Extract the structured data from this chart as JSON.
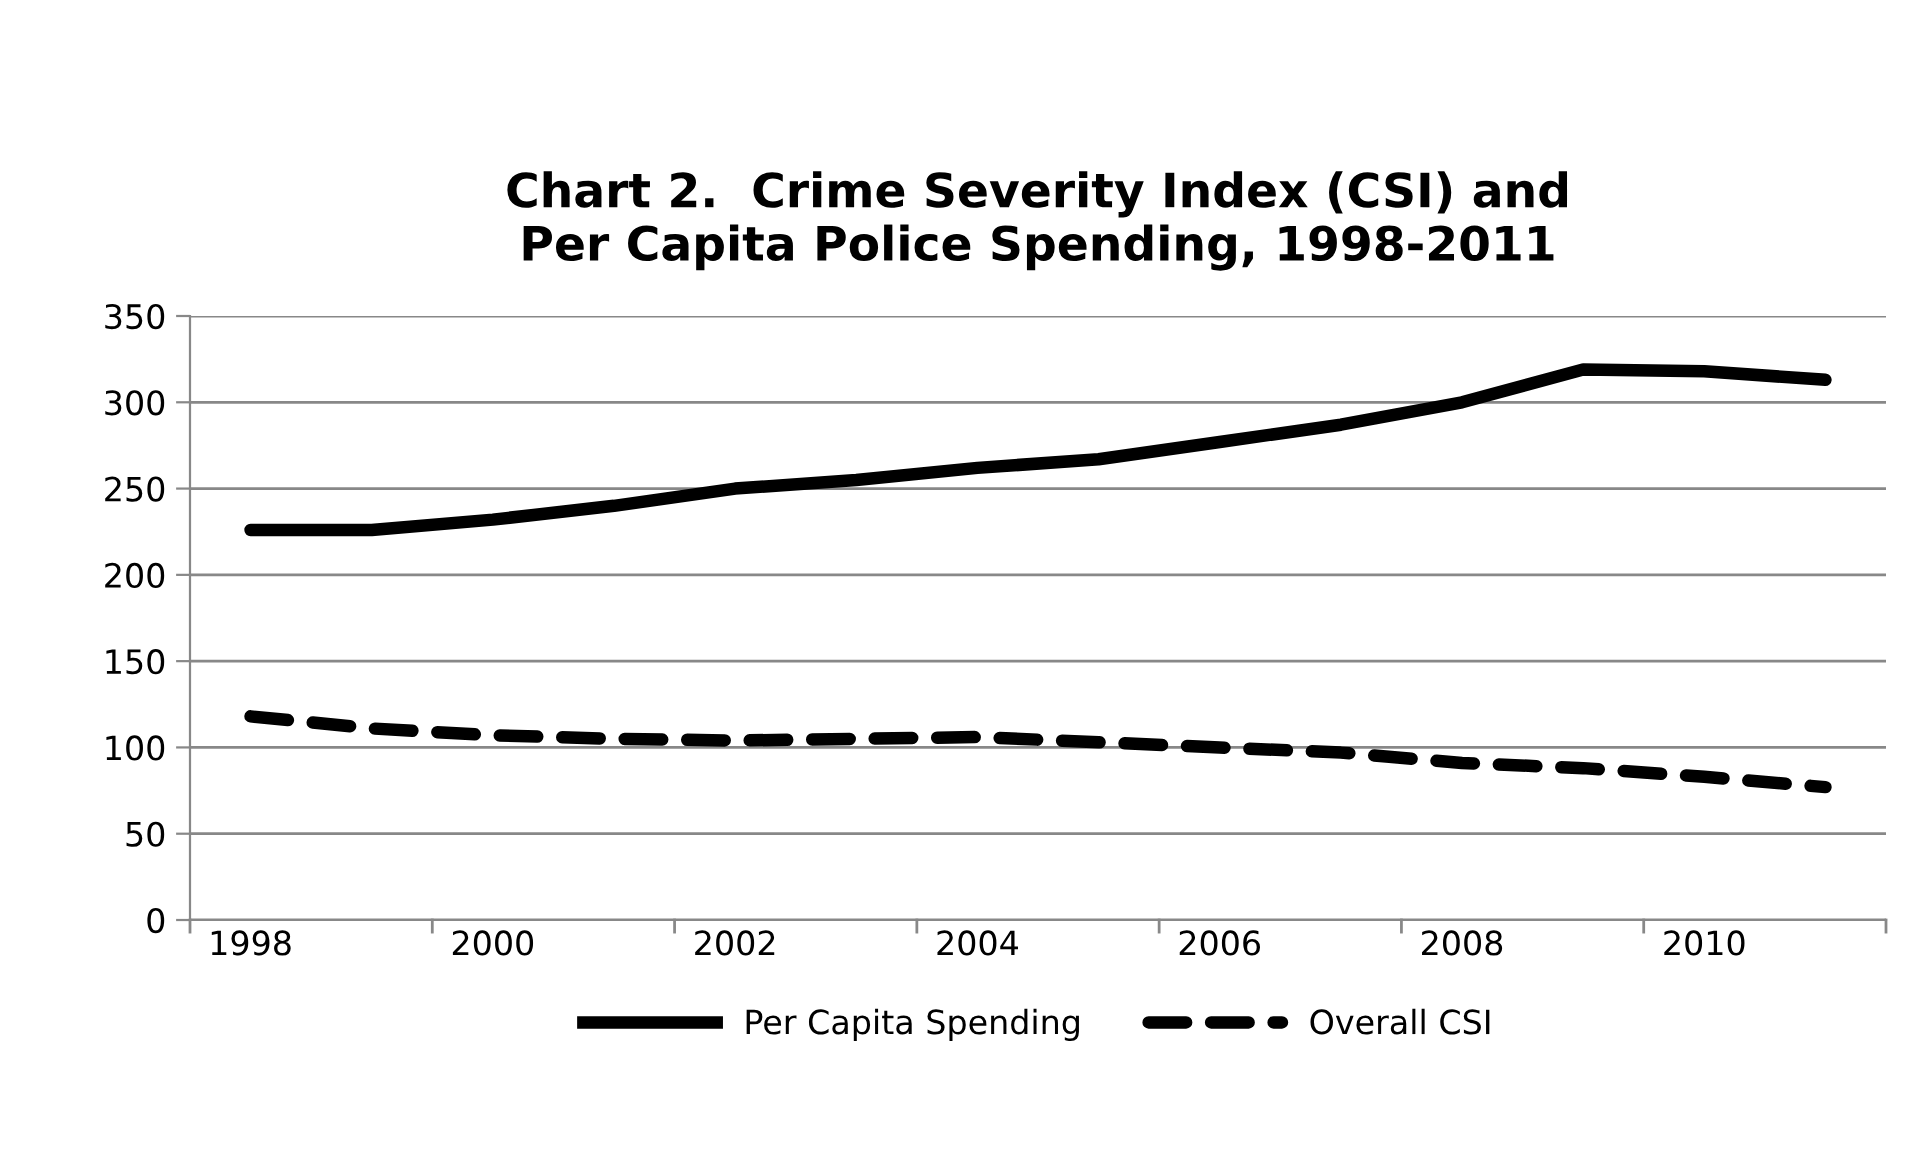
{
  "chart_data": {
    "type": "line",
    "title": "Chart 2.  Crime Severity Index (CSI) and\nPer Capita Police Spending, 1998-2011",
    "categories": [
      "1998",
      null,
      "2000",
      null,
      "2002",
      null,
      "2004",
      null,
      "2006",
      null,
      "2008",
      null,
      "2010",
      null
    ],
    "series": [
      {
        "name": "Per Capita Spending",
        "color": "#000000",
        "line_style": "solid",
        "values": [
          226,
          226,
          232,
          240,
          250,
          255,
          262,
          267,
          277,
          287,
          300,
          319,
          318,
          313
        ]
      },
      {
        "name": "Overall CSI",
        "color": "#000000",
        "line_style": "dashed",
        "values": [
          118,
          111,
          107,
          105,
          104,
          105,
          106,
          103,
          100,
          97,
          91,
          88,
          83,
          77
        ]
      }
    ],
    "ylim": [
      0,
      350
    ],
    "yticks": [
      0,
      50,
      100,
      150,
      200,
      250,
      300,
      350
    ],
    "grid": "y",
    "legend": "bottom",
    "marker": "none"
  }
}
